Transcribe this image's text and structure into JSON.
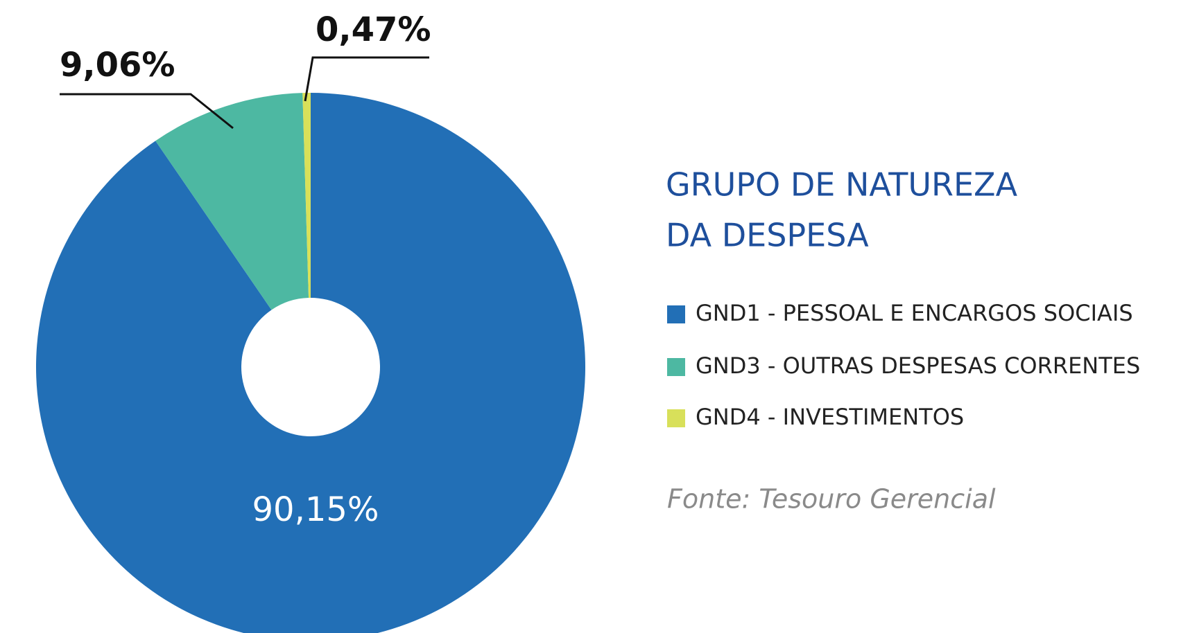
{
  "chart_data": {
    "type": "pie",
    "donut": true,
    "legend_title": [
      "GRUPO DE NATUREZA",
      "DA DESPESA"
    ],
    "categories": [
      "GND1 - PESSOAL E ENCARGOS SOCIAIS",
      "GND3 - OUTRAS DESPESAS CORRENTES",
      "GND4 - INVESTIMENTOS"
    ],
    "values": [
      90.15,
      9.06,
      0.47
    ],
    "value_labels": [
      "90,15%",
      "9,06%",
      "0,47%"
    ],
    "colors": [
      "#226fb6",
      "#4db8a2",
      "#d8e05a"
    ],
    "source": "Fonte: Tesouro Gerencial",
    "legend": "right"
  }
}
